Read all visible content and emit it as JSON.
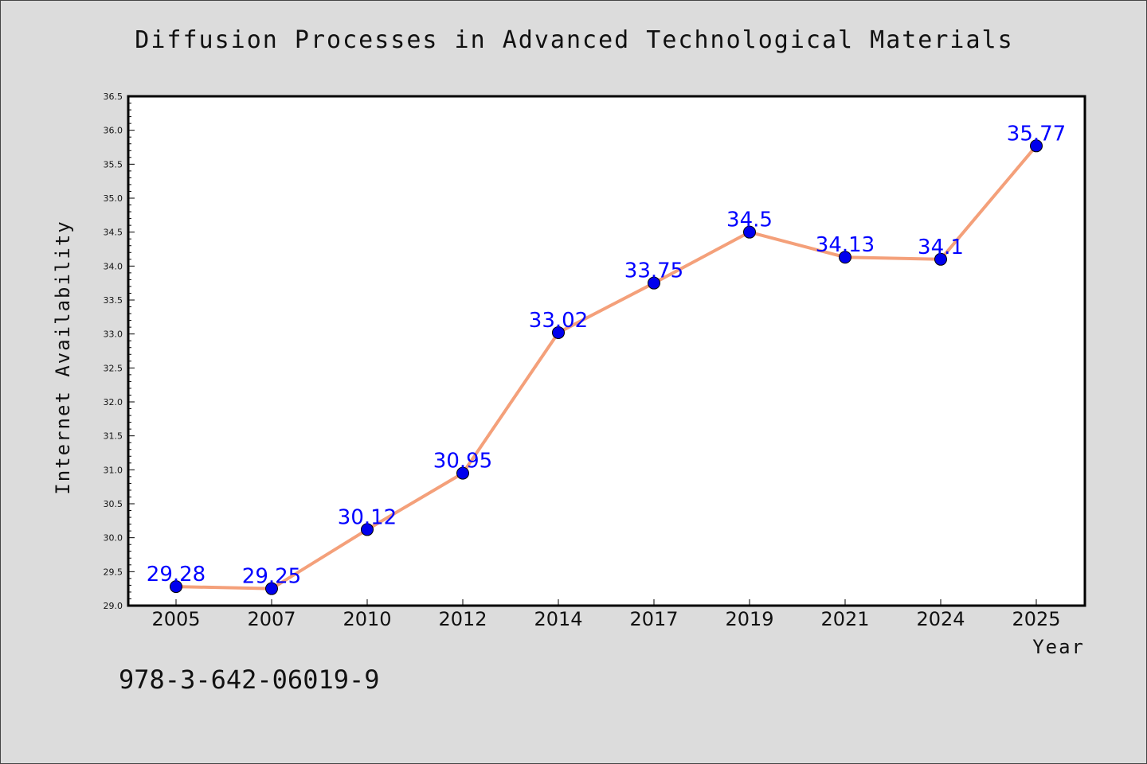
{
  "title": "Diffusion Processes in Advanced Technological Materials",
  "footer_text": "978-3-642-06019-9",
  "chart_data": {
    "type": "line",
    "title": "Diffusion Processes in Advanced Technological Materials",
    "xlabel": "Year",
    "ylabel": "Internet Availability",
    "categories": [
      "2005",
      "2007",
      "2010",
      "2012",
      "2014",
      "2017",
      "2019",
      "2021",
      "2024",
      "2025"
    ],
    "values": [
      29.28,
      29.25,
      30.12,
      30.95,
      33.02,
      33.75,
      34.5,
      34.13,
      34.1,
      35.77
    ],
    "data_labels": [
      "29.28",
      "29.25",
      "30.12",
      "30.95",
      "33.02",
      "33.75",
      "34.5",
      "34.13",
      "34.1",
      "35.77"
    ],
    "ylim": [
      29.0,
      36.5
    ],
    "y_ticks": [
      "29.0",
      "29.5",
      "30.0",
      "30.5",
      "31.0",
      "31.5",
      "32.0",
      "32.5",
      "33.0",
      "33.5",
      "34.0",
      "34.5",
      "35.0",
      "35.5",
      "36.0",
      "36.5"
    ],
    "grid": false,
    "legend": "none",
    "line_color": "#f4a07a",
    "marker_color": "#0000ee",
    "label_color": "#0000ff",
    "plot_background": "#ffffff",
    "page_background": "#dcdcdc"
  }
}
